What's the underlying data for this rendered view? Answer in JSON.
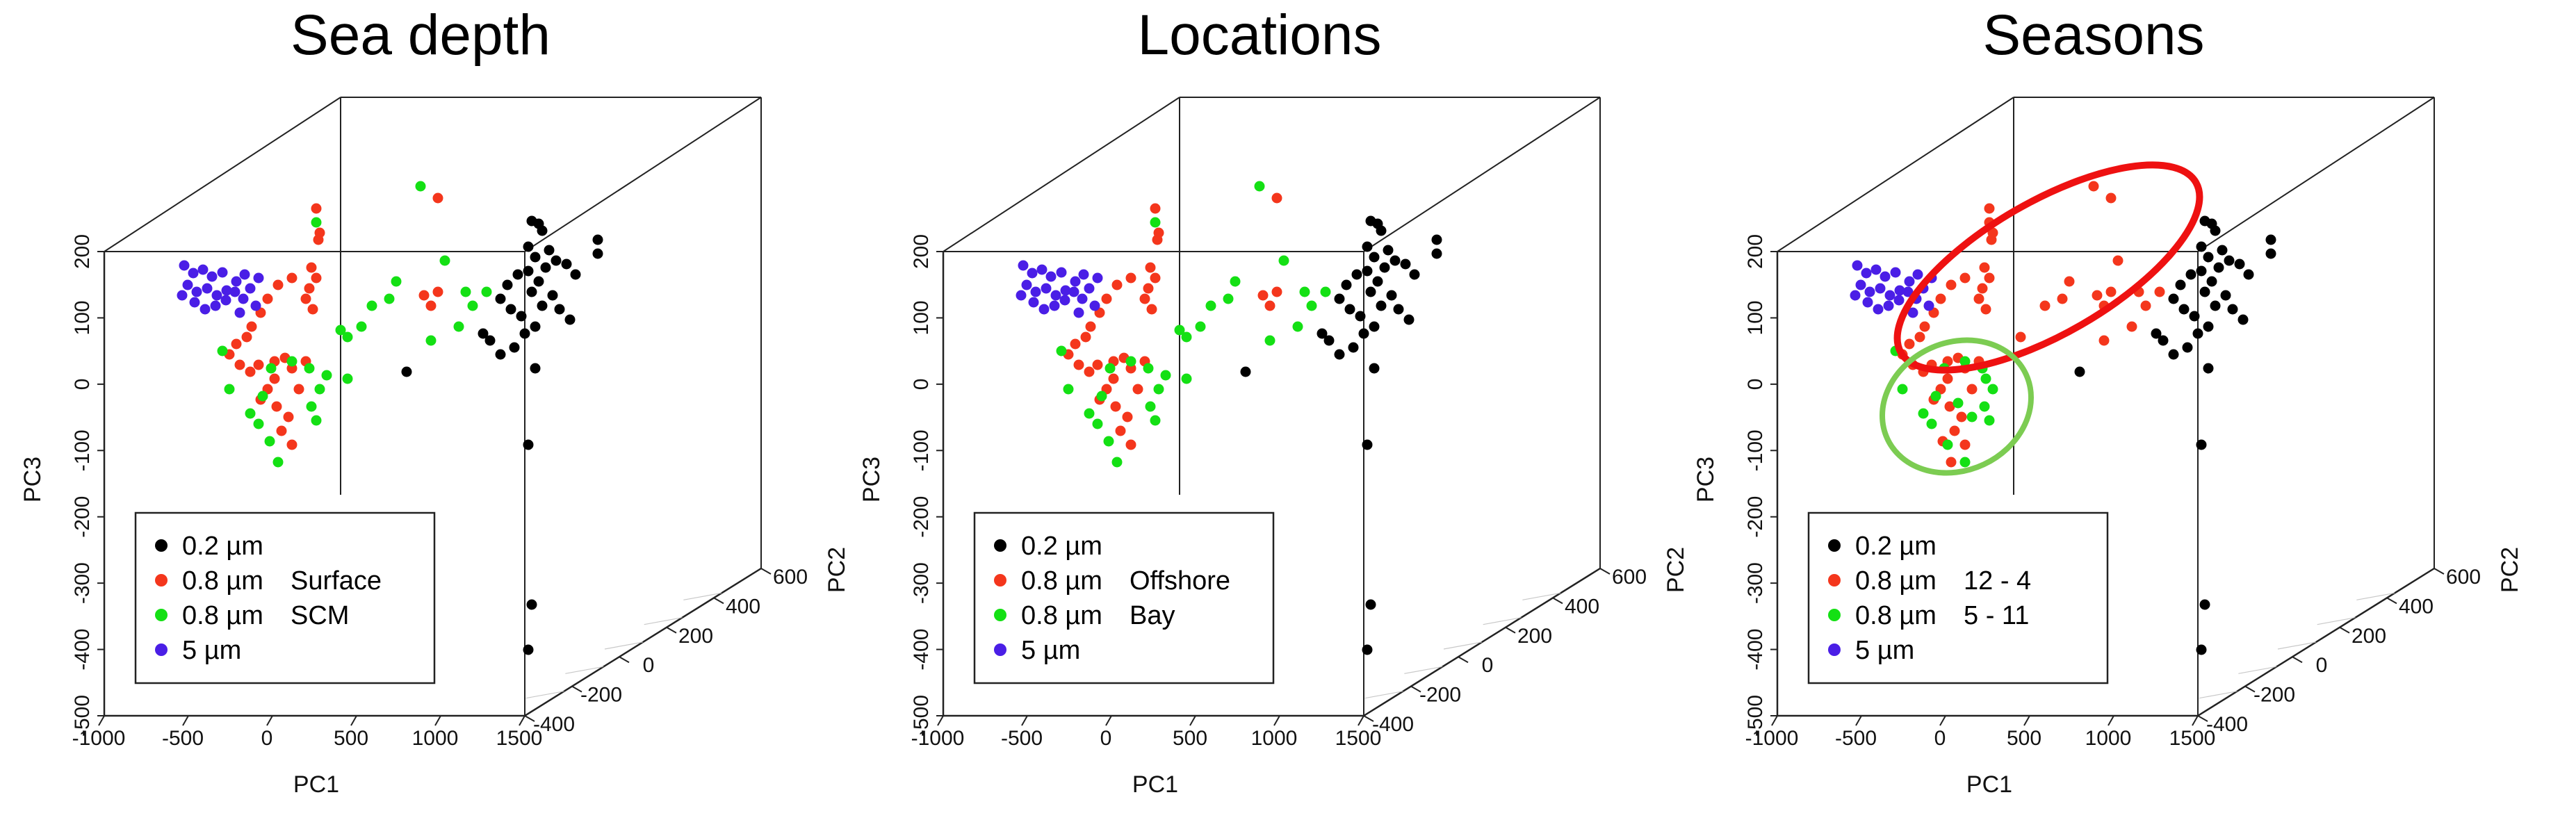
{
  "colors": {
    "size_0_2": "#000000",
    "size_0_8_a": "#f4361c",
    "size_0_8_b": "#14e014",
    "size_5": "#4a1ee6",
    "ellipse_red": "#ee1111",
    "ellipse_green": "#7ccc52",
    "axes": "#222222"
  },
  "axes": {
    "x_label": "PC1",
    "y_label": "PC2",
    "z_label": "PC3",
    "x_ticks": [
      "-1000",
      "-500",
      "0",
      "500",
      "1000",
      "1500"
    ],
    "y_ticks": [
      "-400",
      "-200",
      "0",
      "200",
      "400",
      "600"
    ],
    "z_ticks": [
      "-500",
      "-400",
      "-300",
      "-200",
      "-100",
      "0",
      "100",
      "200"
    ]
  },
  "chart_data": [
    {
      "type": "scatter",
      "title": "Sea depth",
      "xlabel": "PC1",
      "ylabel": "PC2",
      "zlabel": "PC3",
      "xlim": [
        -1000,
        1500
      ],
      "ylim": [
        -400,
        600
      ],
      "zlim": [
        -500,
        200
      ],
      "grid": false,
      "legend_placement": "bottom-left",
      "legend": [
        {
          "size": "0.2 µm",
          "group": ""
        },
        {
          "size": "0.8 µm",
          "group": "Surface"
        },
        {
          "size": "0.8 µm",
          "group": "SCM"
        },
        {
          "size": "5 µm",
          "group": ""
        }
      ]
    },
    {
      "type": "scatter",
      "title": "Locations",
      "xlabel": "PC1",
      "ylabel": "PC2",
      "zlabel": "PC3",
      "xlim": [
        -1000,
        1500
      ],
      "ylim": [
        -400,
        600
      ],
      "zlim": [
        -500,
        200
      ],
      "grid": false,
      "legend_placement": "bottom-left",
      "legend": [
        {
          "size": "0.2 µm",
          "group": ""
        },
        {
          "size": "0.8 µm",
          "group": "Offshore"
        },
        {
          "size": "0.8 µm",
          "group": "Bay"
        },
        {
          "size": "5 µm",
          "group": ""
        }
      ]
    },
    {
      "type": "scatter",
      "title": "Seasons",
      "xlabel": "PC1",
      "ylabel": "PC2",
      "zlabel": "PC3",
      "xlim": [
        -1000,
        1500
      ],
      "ylim": [
        -400,
        600
      ],
      "zlim": [
        -500,
        200
      ],
      "grid": false,
      "legend_placement": "bottom-left",
      "annotations": [
        "red ellipse around 12 - 4 points",
        "green ellipse around 5 - 11 points"
      ],
      "legend": [
        {
          "size": "0.2 µm",
          "group": ""
        },
        {
          "size": "0.8 µm",
          "group": "12 - 4"
        },
        {
          "size": "0.8 µm",
          "group": "5 - 11"
        },
        {
          "size": "5 µm",
          "group": ""
        }
      ]
    }
  ]
}
